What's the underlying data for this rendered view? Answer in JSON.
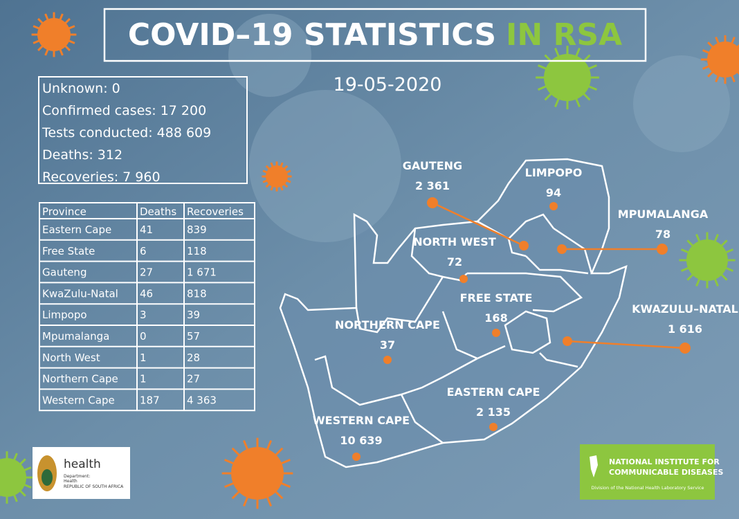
{
  "header": {
    "title": "COVID–19 STATISTICS",
    "title_highlight": "IN RSA",
    "date": "19-05-2020"
  },
  "summary": [
    "Unknown: 0",
    "Confirmed cases: 17 200",
    "Tests conducted: 488 609",
    "Deaths: 312",
    "Recoveries:  7 960"
  ],
  "table": {
    "columns": [
      "Province",
      "Deaths",
      "Recoveries"
    ],
    "rows": [
      [
        "Eastern Cape",
        "41",
        "839"
      ],
      [
        "Free State",
        "6",
        "118"
      ],
      [
        "Gauteng",
        "27",
        "1 671"
      ],
      [
        "KwaZulu-Natal",
        "46",
        "818"
      ],
      [
        "Limpopo",
        "3",
        "39"
      ],
      [
        "Mpumalanga",
        "0",
        "57"
      ],
      [
        "North West",
        "1",
        "28"
      ],
      [
        "Northern Cape",
        "1",
        "27"
      ],
      [
        "Western Cape",
        "187",
        "4 363"
      ]
    ]
  },
  "map": {
    "labels": [
      {
        "name": "GAUTENG",
        "value": "2 361"
      },
      {
        "name": "LIMPOPO",
        "value": "94"
      },
      {
        "name": "MPUMALANGA",
        "value": "78"
      },
      {
        "name": "NORTH WEST",
        "value": "72"
      },
      {
        "name": "FREE STATE",
        "value": "168"
      },
      {
        "name": "KWAZULU–NATAL",
        "value": "1 616"
      },
      {
        "name": "NORTHERN CAPE",
        "value": "37"
      },
      {
        "name": "EASTERN CAPE",
        "value": "2 135"
      },
      {
        "name": "WESTERN CAPE",
        "value": "10 639"
      }
    ]
  },
  "logos": {
    "health": {
      "name": "health",
      "lines": [
        "Department:",
        "Health",
        "REPUBLIC OF SOUTH AFRICA"
      ]
    },
    "nicd": {
      "lines": [
        "NATIONAL INSTITUTE FOR",
        "COMMUNICABLE DISEASES"
      ],
      "subtitle": "Division of the National Health Laboratory Service"
    }
  }
}
